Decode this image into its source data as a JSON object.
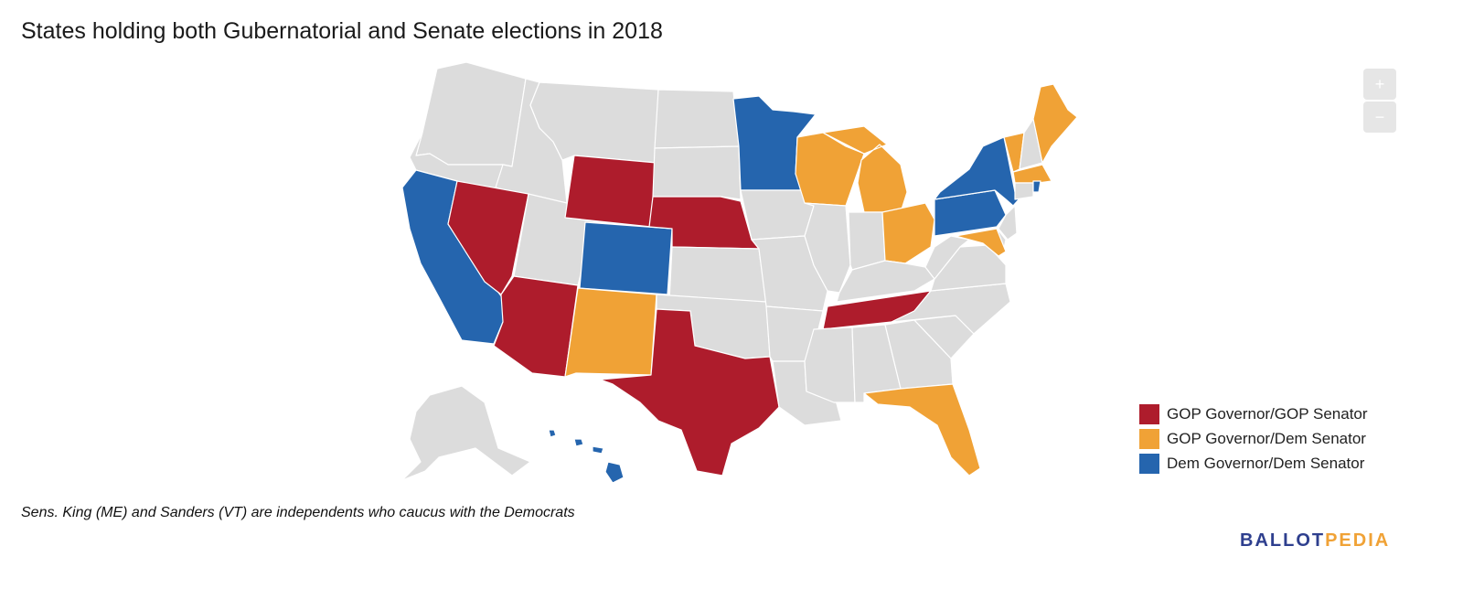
{
  "title": "States holding both Gubernatorial and Senate elections in 2018",
  "colors": {
    "gop_gop": "#ae1c2c",
    "gop_dem": "#f0a236",
    "dem_dem": "#2565ae",
    "none": "#dcdcdc",
    "border": "#ffffff"
  },
  "zoom": {
    "in_label": "+",
    "out_label": "−"
  },
  "legend": [
    {
      "label": "GOP Governor/GOP Senator",
      "color": "#ae1c2c"
    },
    {
      "label": "GOP Governor/Dem Senator",
      "color": "#f0a236"
    },
    {
      "label": "Dem Governor/Dem Senator",
      "color": "#2565ae"
    }
  ],
  "footnote": "Sens. King (ME) and Sanders (VT) are independents who caucus with the Democrats",
  "logo": {
    "part1": "BALLOT",
    "part2": "PEDIA"
  },
  "states": {
    "WA": "none",
    "OR": "none",
    "CA": "dem_dem",
    "NV": "gop_gop",
    "ID": "none",
    "MT": "none",
    "WY": "gop_gop",
    "UT": "none",
    "AZ": "gop_gop",
    "CO": "dem_dem",
    "NM": "gop_dem",
    "ND": "none",
    "SD": "none",
    "NE": "gop_gop",
    "KS": "none",
    "OK": "none",
    "TX": "gop_gop",
    "MN": "dem_dem",
    "IA": "none",
    "MO": "none",
    "AR": "none",
    "LA": "none",
    "WI": "gop_dem",
    "IL": "none",
    "MI": "gop_dem",
    "IN": "none",
    "OH": "gop_dem",
    "KY": "none",
    "TN": "gop_gop",
    "MS": "none",
    "AL": "none",
    "GA": "none",
    "FL": "gop_dem",
    "SC": "none",
    "NC": "none",
    "VA": "none",
    "WV": "none",
    "PA": "dem_dem",
    "NY": "dem_dem",
    "VT": "gop_dem",
    "NH": "none",
    "ME": "gop_dem",
    "MA": "gop_dem",
    "RI": "dem_dem",
    "CT": "none",
    "NJ": "none",
    "DE": "none",
    "MD": "gop_dem",
    "AK": "none",
    "HI": "dem_dem"
  }
}
